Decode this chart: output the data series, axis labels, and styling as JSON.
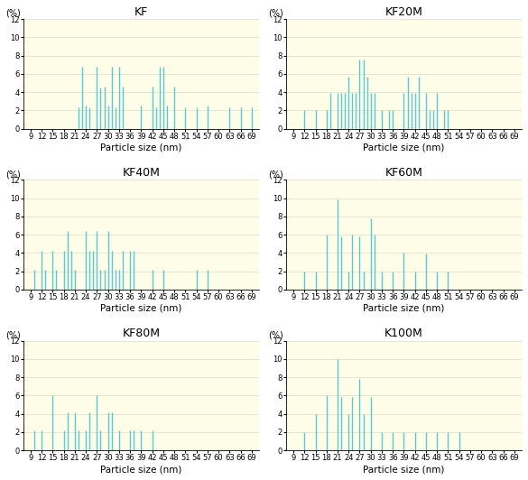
{
  "panels": [
    {
      "title": "KF",
      "x_values": [
        22,
        23,
        24,
        25,
        27,
        28,
        29,
        30,
        31,
        32,
        33,
        34,
        39,
        42,
        43,
        44,
        45,
        46,
        48,
        51,
        54,
        57,
        63,
        66,
        69
      ],
      "y_values": [
        2.3,
        6.8,
        2.5,
        2.3,
        6.8,
        4.5,
        4.6,
        2.5,
        6.8,
        2.3,
        6.8,
        4.6,
        2.5,
        4.6,
        2.3,
        6.8,
        6.8,
        2.5,
        4.6,
        2.3,
        2.3,
        2.5,
        2.3,
        2.3,
        2.3
      ]
    },
    {
      "title": "KF20M",
      "x_values": [
        12,
        15,
        18,
        19,
        21,
        22,
        23,
        24,
        25,
        26,
        27,
        28,
        29,
        30,
        31,
        33,
        35,
        36,
        39,
        40,
        41,
        42,
        43,
        45,
        46,
        47,
        48,
        50,
        51
      ],
      "y_values": [
        2.0,
        2.0,
        2.0,
        3.9,
        3.9,
        3.9,
        3.9,
        5.7,
        3.9,
        3.9,
        7.6,
        7.6,
        5.7,
        3.9,
        3.9,
        2.0,
        2.0,
        2.0,
        3.9,
        5.7,
        3.9,
        3.9,
        5.7,
        3.9,
        2.0,
        2.0,
        3.9,
        2.0,
        2.0
      ]
    },
    {
      "title": "KF40M",
      "x_values": [
        10,
        12,
        13,
        15,
        16,
        18,
        19,
        20,
        21,
        24,
        25,
        26,
        27,
        28,
        29,
        30,
        31,
        32,
        33,
        34,
        36,
        37,
        42,
        45,
        54,
        57
      ],
      "y_values": [
        2.2,
        4.2,
        2.2,
        4.2,
        2.2,
        4.2,
        6.4,
        4.2,
        2.2,
        6.4,
        4.2,
        4.2,
        6.4,
        2.2,
        2.2,
        6.4,
        4.2,
        2.2,
        2.2,
        4.2,
        4.2,
        4.2,
        2.2,
        2.2,
        2.2,
        2.2
      ]
    },
    {
      "title": "KF60M",
      "x_values": [
        12,
        15,
        18,
        21,
        22,
        24,
        25,
        27,
        28,
        30,
        31,
        33,
        36,
        39,
        42,
        45,
        48,
        51
      ],
      "y_values": [
        2.0,
        2.0,
        6.0,
        9.9,
        5.8,
        2.0,
        6.0,
        5.8,
        2.0,
        7.8,
        6.0,
        2.0,
        2.0,
        4.0,
        2.0,
        3.9,
        2.0,
        2.0
      ]
    },
    {
      "title": "KF80M",
      "x_values": [
        10,
        12,
        15,
        18,
        19,
        21,
        22,
        24,
        25,
        27,
        28,
        30,
        31,
        33,
        36,
        37,
        39,
        42
      ],
      "y_values": [
        2.2,
        2.2,
        6.0,
        2.2,
        4.2,
        4.2,
        2.2,
        2.2,
        4.2,
        6.0,
        2.2,
        4.2,
        4.2,
        2.2,
        2.2,
        2.2,
        2.2,
        2.2
      ]
    },
    {
      "title": "K100M",
      "x_values": [
        12,
        15,
        18,
        21,
        22,
        24,
        25,
        27,
        28,
        30,
        33,
        36,
        39,
        42,
        45,
        48,
        51,
        54
      ],
      "y_values": [
        2.0,
        4.0,
        6.0,
        10.0,
        5.8,
        4.0,
        5.8,
        7.8,
        4.0,
        5.8,
        2.0,
        2.0,
        2.0,
        2.0,
        2.0,
        2.0,
        2.0,
        2.0
      ]
    }
  ],
  "bar_color": "#5BC8D5",
  "bg_color": "#FEFDE8",
  "ylim": [
    0,
    12
  ],
  "yticks": [
    0,
    2,
    4,
    6,
    8,
    10,
    12
  ],
  "x_tick_labels": [
    "9",
    "12",
    "15",
    "18",
    "21",
    "24",
    "27",
    "30",
    "33",
    "36",
    "39",
    "42",
    "45",
    "48",
    "51",
    "54",
    "57",
    "60",
    "63",
    "66",
    "69"
  ],
  "x_tick_positions": [
    9,
    12,
    15,
    18,
    21,
    24,
    27,
    30,
    33,
    36,
    39,
    42,
    45,
    48,
    51,
    54,
    57,
    60,
    63,
    66,
    69
  ],
  "xlabel": "Particle size (nm)",
  "ylabel": "(%)",
  "grid_color": "#DDDDCC",
  "title_fontsize": 9,
  "axis_fontsize": 6,
  "label_fontsize": 7.5,
  "ylabel_fontsize": 7
}
